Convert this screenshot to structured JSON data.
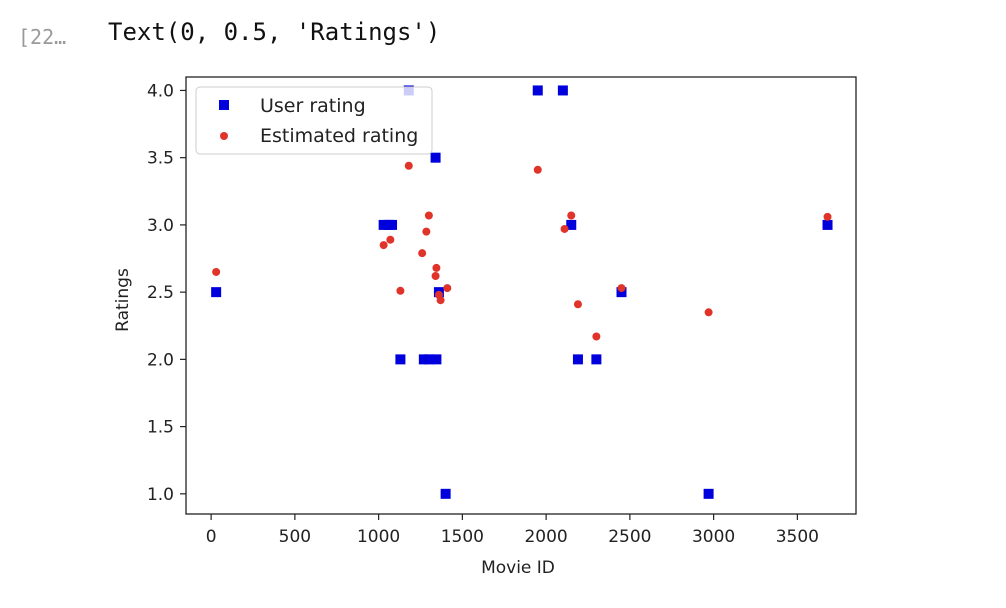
{
  "cell": {
    "prompt": "[22…",
    "output_text": "Text(0, 0.5, 'Ratings')"
  },
  "colors": {
    "user": "#0000dd",
    "estimated": "#e0332a"
  },
  "chart_data": {
    "type": "scatter",
    "title": "",
    "xlabel": "Movie ID",
    "ylabel": "Ratings",
    "xlim": [
      -150,
      3850
    ],
    "ylim": [
      0.85,
      4.1
    ],
    "xticks": [
      0,
      500,
      1000,
      1500,
      2000,
      2500,
      3000,
      3500
    ],
    "yticks": [
      1.0,
      1.5,
      2.0,
      2.5,
      3.0,
      3.5,
      4.0
    ],
    "legend": "top-left",
    "series": [
      {
        "name": "User rating",
        "marker": "square",
        "x": [
          30,
          1030,
          1060,
          1080,
          1130,
          1180,
          1270,
          1300,
          1340,
          1345,
          1360,
          1400,
          1950,
          2100,
          2150,
          2190,
          2300,
          2450,
          2970,
          3680
        ],
        "y": [
          2.5,
          3.0,
          3.0,
          3.0,
          2.0,
          4.0,
          2.0,
          2.0,
          3.5,
          2.0,
          2.5,
          1.0,
          4.0,
          4.0,
          3.0,
          2.0,
          2.0,
          2.5,
          1.0,
          3.0
        ]
      },
      {
        "name": "Estimated rating",
        "marker": "circle",
        "x": [
          30,
          1030,
          1070,
          1130,
          1180,
          1260,
          1285,
          1300,
          1340,
          1345,
          1360,
          1370,
          1410,
          1950,
          2110,
          2150,
          2190,
          2300,
          2450,
          2970,
          3680
        ],
        "y": [
          2.65,
          2.85,
          2.89,
          2.51,
          3.44,
          2.79,
          2.95,
          3.07,
          2.62,
          2.68,
          2.48,
          2.44,
          2.53,
          3.41,
          2.97,
          3.07,
          2.41,
          2.17,
          2.53,
          2.35,
          3.06
        ]
      }
    ]
  }
}
